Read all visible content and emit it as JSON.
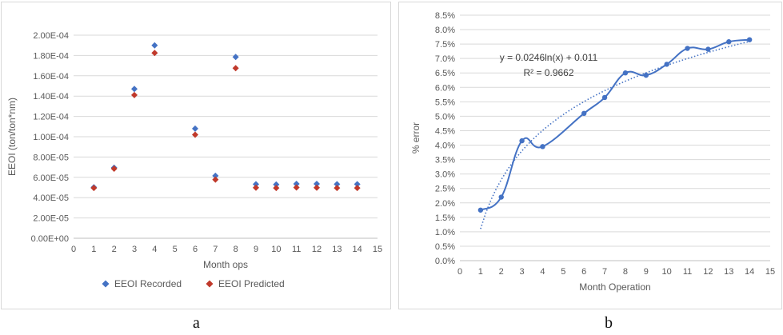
{
  "labels": {
    "a": "a",
    "b": "b"
  },
  "colors": {
    "recorded": "#4472c4",
    "predicted": "#c0392b",
    "line": "#4472c4",
    "grid": "#d9d9d9",
    "axis": "#bfbfbf"
  },
  "chart_data": [
    {
      "type": "scatter",
      "xlabel": "Month ops",
      "ylabel": "EEOI (ton/ton*nm)",
      "xlim": [
        0,
        15
      ],
      "ylim": [
        0,
        0.0002
      ],
      "x_ticks": [
        "0",
        "1",
        "2",
        "3",
        "4",
        "5",
        "6",
        "7",
        "8",
        "9",
        "10",
        "11",
        "12",
        "13",
        "14",
        "15"
      ],
      "y_ticks": [
        "0.00E+00",
        "2.00E-05",
        "4.00E-05",
        "6.00E-05",
        "8.00E-05",
        "1.00E-04",
        "1.20E-04",
        "1.40E-04",
        "1.60E-04",
        "1.80E-04",
        "2.00E-04"
      ],
      "grid": "horizontal",
      "legend_position": "bottom",
      "series": [
        {
          "name": "EEOI Recorded",
          "marker": "diamond",
          "color": "#4472c4",
          "x": [
            1,
            2,
            3,
            4,
            6,
            7,
            8,
            9,
            10,
            11,
            12,
            13,
            14
          ],
          "y": [
            5.02e-05,
            6.95e-05,
            0.000147,
            0.00019,
            0.000108,
            6.15e-05,
            0.0001785,
            5.32e-05,
            5.3e-05,
            5.35e-05,
            5.35e-05,
            5.32e-05,
            5.32e-05
          ]
        },
        {
          "name": "EEOI Predicted",
          "marker": "diamond",
          "color": "#c0392b",
          "x": [
            1,
            2,
            3,
            4,
            6,
            7,
            8,
            9,
            10,
            11,
            12,
            13,
            14
          ],
          "y": [
            4.95e-05,
            6.85e-05,
            0.000141,
            0.0001825,
            0.000102,
            5.78e-05,
            0.0001675,
            4.98e-05,
            4.95e-05,
            5e-05,
            4.98e-05,
            4.95e-05,
            4.95e-05
          ]
        }
      ]
    },
    {
      "type": "line",
      "xlabel": "Month Operation",
      "ylabel": "% error",
      "xlim": [
        0,
        15
      ],
      "ylim": [
        0,
        8.5
      ],
      "x_ticks": [
        "0",
        "1",
        "2",
        "3",
        "4",
        "5",
        "6",
        "7",
        "8",
        "9",
        "10",
        "11",
        "12",
        "13",
        "14",
        "15"
      ],
      "y_ticks": [
        "0.0%",
        "0.5%",
        "1.0%",
        "1.5%",
        "2.0%",
        "2.5%",
        "3.0%",
        "3.5%",
        "4.0%",
        "4.5%",
        "5.0%",
        "5.5%",
        "6.0%",
        "6.5%",
        "7.0%",
        "7.5%",
        "8.0%",
        "8.5%"
      ],
      "grid": "horizontal",
      "series": [
        {
          "marker": "circle",
          "smooth": true,
          "color": "#4472c4",
          "x": [
            1,
            2,
            3,
            4,
            6,
            7,
            8,
            9,
            10,
            11,
            12,
            13,
            14
          ],
          "y": [
            1.75,
            2.2,
            4.15,
            3.95,
            5.1,
            5.65,
            6.5,
            6.42,
            6.8,
            7.35,
            7.32,
            7.58,
            7.65
          ]
        }
      ],
      "trendline": {
        "type": "log",
        "a": 0.0246,
        "b": 0.011,
        "style": "dotted",
        "equation": "y = 0.0246ln(x) + 0.011",
        "r2": "R² = 0.9662"
      }
    }
  ]
}
